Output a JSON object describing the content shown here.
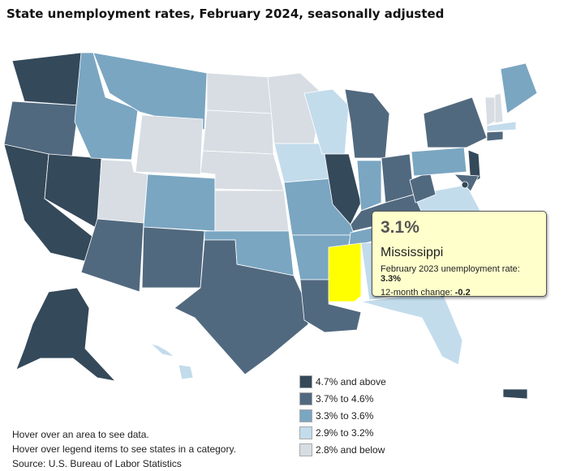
{
  "title": "State unemployment rates, February 2024, seasonally adjusted",
  "colors": {
    "c5": "#34495a",
    "c4": "#51697f",
    "c3": "#7aa6c2",
    "c2": "#c3dcec",
    "c1": "#d7dde3",
    "highlight": "#ffff00"
  },
  "tooltip": {
    "rate": "3.1%",
    "state": "Mississippi",
    "prev_label": "February 2023 unemployment rate: ",
    "prev_value": "3.3%",
    "change_label": "12-month change: ",
    "change_value": "-0.2"
  },
  "legend": [
    {
      "label": "4.7% and above",
      "color": "#34495a"
    },
    {
      "label": "3.7% to 4.6%",
      "color": "#51697f"
    },
    {
      "label": "3.3% to 3.6%",
      "color": "#7aa6c2"
    },
    {
      "label": "2.9% to 3.2%",
      "color": "#c3dcec"
    },
    {
      "label": "2.8% and below",
      "color": "#d7dde3"
    }
  ],
  "notes": [
    "Hover over an area to see data.",
    "Hover over legend items to see states in a category.",
    "Source: U.S. Bureau of Labor Statistics"
  ]
}
